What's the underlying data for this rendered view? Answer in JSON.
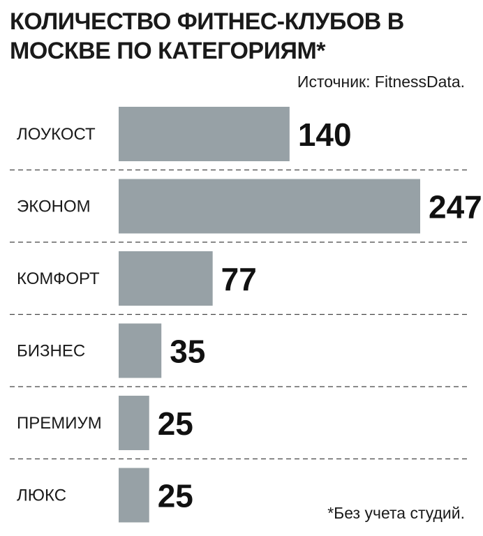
{
  "chart_data": {
    "type": "bar",
    "orientation": "horizontal",
    "title": "КОЛИЧЕСТВО ФИТНЕС-КЛУБОВ В МОСКВЕ ПО КАТЕГОРИЯМ*",
    "source": "Источник: FitnessData.",
    "note": "*Без учета студий.",
    "categories": [
      "ЛОУКОСТ",
      "ЭКОНОМ",
      "КОМФОРТ",
      "БИЗНЕС",
      "ПРЕМИУМ",
      "ЛЮКС"
    ],
    "values": [
      140,
      247,
      77,
      35,
      25,
      25
    ],
    "xlim": [
      0,
      247
    ],
    "bar_color": "#97a1a6",
    "separator_color": "#444444",
    "grid": false,
    "legend": "none"
  }
}
